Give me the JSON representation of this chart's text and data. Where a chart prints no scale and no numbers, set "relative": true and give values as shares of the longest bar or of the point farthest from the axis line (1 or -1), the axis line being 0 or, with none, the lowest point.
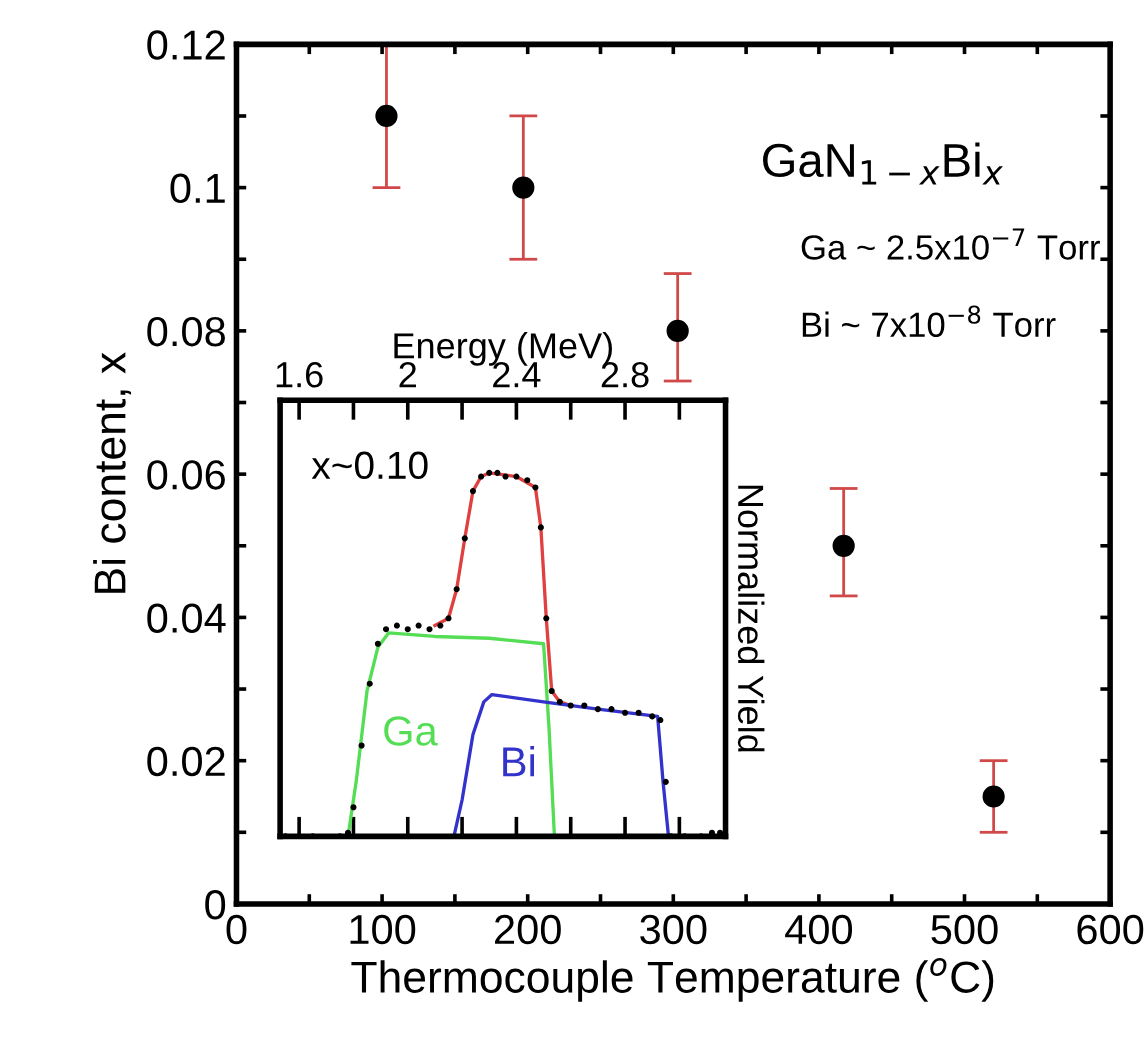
{
  "chart_data": [
    {
      "type": "scatter",
      "xlabel": "Thermocouple Temperature ($^{o}$C)",
      "ylabel": "Bi content, x",
      "annotations": [
        "GaN$_{1−x}$Bi$_{x}$",
        "Ga ~ 2.5x10$^{−7}$ Torr",
        "Bi ~ 7x10$^{−8}$ Torr"
      ],
      "xlim": [
        0,
        600
      ],
      "ylim": [
        0,
        0.12
      ],
      "xticks": [
        0,
        {
          "value": 50,
          "label": null
        },
        100,
        {
          "value": 150,
          "label": null
        },
        200,
        {
          "value": 250,
          "label": null
        },
        300,
        {
          "value": 350,
          "label": null
        },
        400,
        {
          "value": 450,
          "label": null
        },
        500,
        {
          "value": 550,
          "label": null
        },
        600
      ],
      "yticks": [
        0,
        {
          "value": 0.01,
          "label": null
        },
        0.02,
        {
          "value": 0.03,
          "label": null
        },
        0.04,
        {
          "value": 0.05,
          "label": null
        },
        0.06,
        {
          "value": 0.07,
          "label": null
        },
        0.08,
        {
          "value": 0.09,
          "label": null
        },
        0.1,
        {
          "value": 0.11,
          "label": null
        },
        0.12
      ],
      "marker": "circle",
      "grid": false,
      "legend": false,
      "series": [
        {
          "color": "#000000",
          "x": [
            103,
            197,
            303,
            417,
            520
          ],
          "values": [
            0.11,
            0.1,
            0.08,
            0.05,
            0.015
          ],
          "errors": [
            [
              0.1,
              0.12
            ],
            [
              0.09,
              0.11
            ],
            [
              0.073,
              0.088
            ],
            [
              0.043,
              0.058
            ],
            [
              0.01,
              0.02
            ]
          ]
        }
      ]
    },
    {
      "type": "line",
      "xlabel": "Energy (MeV)",
      "y2label": "Normalized Yield",
      "relative": true,
      "annotations": [
        "x~0.10"
      ],
      "xlim": [
        1.53,
        3.17
      ],
      "xticks": [
        1.6,
        {
          "value": 1.8,
          "label": null
        },
        2,
        {
          "value": 2.2,
          "label": null
        },
        2.4,
        {
          "value": 2.6,
          "label": null
        },
        2.8,
        {
          "value": 3.0,
          "label": null
        }
      ],
      "grid": false,
      "series": [
        {
          "type": "scatter",
          "marker": "circle",
          "color": "#000000",
          "x": [
            1.55,
            1.65,
            1.75,
            1.78,
            1.8,
            1.83,
            1.86,
            1.89,
            1.92,
            1.96,
            2.0,
            2.04,
            2.08,
            2.12,
            2.15,
            2.18,
            2.21,
            2.24,
            2.27,
            2.3,
            2.33,
            2.36,
            2.4,
            2.44,
            2.47,
            2.49,
            2.51,
            2.53,
            2.56,
            2.6,
            2.65,
            2.7,
            2.75,
            2.8,
            2.85,
            2.9,
            2.93,
            2.95,
            2.97,
            3.02,
            3.08,
            3.12,
            3.15
          ],
          "values": [
            0,
            0,
            0,
            0.01,
            0.08,
            0.25,
            0.42,
            0.53,
            0.57,
            0.58,
            0.57,
            0.58,
            0.57,
            0.58,
            0.6,
            0.68,
            0.82,
            0.95,
            0.99,
            1.0,
            1.0,
            0.99,
            0.99,
            0.98,
            0.96,
            0.85,
            0.6,
            0.4,
            0.37,
            0.36,
            0.36,
            0.35,
            0.35,
            0.34,
            0.34,
            0.33,
            0.32,
            0.15,
            0,
            0,
            0,
            0.01,
            0.01
          ]
        },
        {
          "type": "line",
          "color": "#e04040",
          "x": [
            2.1,
            2.15,
            2.18,
            2.21,
            2.24,
            2.27,
            2.3,
            2.4,
            2.47,
            2.49,
            2.51,
            2.53,
            2.56,
            2.6
          ],
          "values": [
            0.58,
            0.6,
            0.68,
            0.82,
            0.95,
            0.99,
            1.0,
            0.99,
            0.96,
            0.85,
            0.6,
            0.4,
            0.37,
            0.36
          ]
        },
        {
          "type": "line",
          "name": "Ga",
          "color": "#55dd55",
          "x": [
            1.78,
            1.81,
            1.85,
            1.89,
            1.93,
            2.1,
            2.3,
            2.5,
            2.52,
            2.54
          ],
          "values": [
            0,
            0.15,
            0.4,
            0.52,
            0.56,
            0.55,
            0.545,
            0.53,
            0.3,
            0
          ]
        },
        {
          "type": "line",
          "name": "Bi",
          "color": "#3333cc",
          "x": [
            2.17,
            2.2,
            2.24,
            2.28,
            2.31,
            2.5,
            2.7,
            2.92,
            2.94,
            2.96
          ],
          "values": [
            0,
            0.1,
            0.28,
            0.37,
            0.39,
            0.37,
            0.35,
            0.33,
            0.15,
            0
          ]
        }
      ]
    }
  ]
}
